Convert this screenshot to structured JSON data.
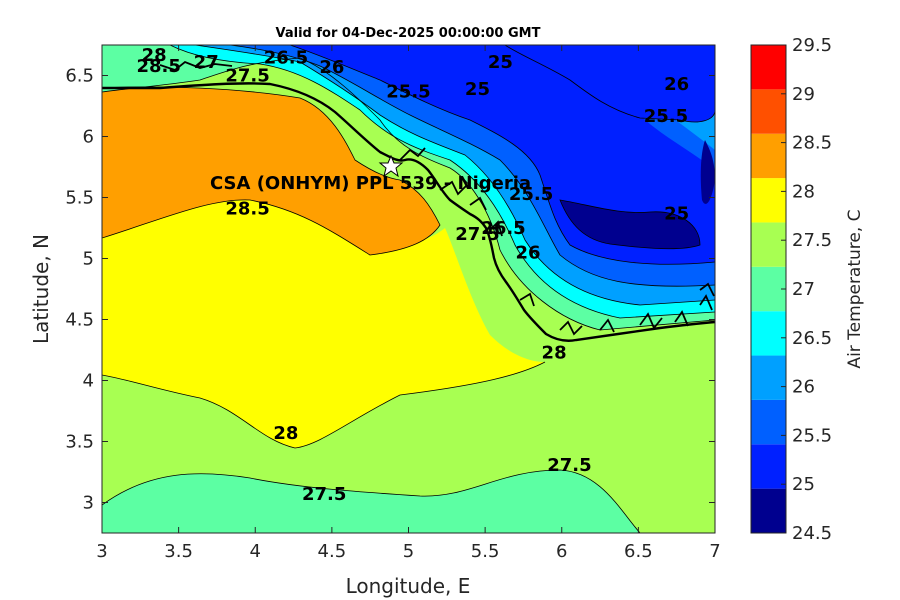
{
  "chart_data": {
    "type": "filled-contour",
    "title": "Valid for 04-Dec-2025 00:00:00 GMT",
    "xlabel": "Longitude, E",
    "ylabel": "Latitude, N",
    "xlim": [
      3,
      7
    ],
    "ylim": [
      2.75,
      6.75
    ],
    "xticks": [
      "3",
      "3.5",
      "4",
      "4.5",
      "5",
      "5.5",
      "6",
      "6.5",
      "7"
    ],
    "yticks": [
      "3",
      "3.5",
      "4",
      "4.5",
      "5",
      "5.5",
      "6",
      "6.5"
    ],
    "colorbar": {
      "label": "Air Temperature, C",
      "ticks": [
        "24.5",
        "25",
        "25.5",
        "26",
        "26.5",
        "27",
        "27.5",
        "28",
        "28.5",
        "29",
        "29.5"
      ],
      "colors": [
        "#00008f",
        "#0020ff",
        "#0060ff",
        "#00a0ff",
        "#00ffff",
        "#5cffa3",
        "#a8ff52",
        "#ffff00",
        "#ff9f00",
        "#ff5000",
        "#ff0000"
      ]
    },
    "site_marker": {
      "label": "CSA (ONHYM) PPL 539 - Nigeria",
      "lon": 4.88,
      "lat": 5.77
    },
    "contour_labels": [
      {
        "text": "28",
        "lon": 3.34,
        "lat": 6.62
      },
      {
        "text": "28.5",
        "lon": 3.37,
        "lat": 6.53
      },
      {
        "text": "27",
        "lon": 3.68,
        "lat": 6.56
      },
      {
        "text": "26.5",
        "lon": 4.2,
        "lat": 6.6
      },
      {
        "text": "26",
        "lon": 4.5,
        "lat": 6.52
      },
      {
        "text": "27.5",
        "lon": 3.95,
        "lat": 6.45
      },
      {
        "text": "25",
        "lon": 5.6,
        "lat": 6.56
      },
      {
        "text": "25.5",
        "lon": 5.0,
        "lat": 6.32
      },
      {
        "text": "25",
        "lon": 5.45,
        "lat": 6.34
      },
      {
        "text": "26",
        "lon": 6.75,
        "lat": 6.38
      },
      {
        "text": "25.5",
        "lon": 6.68,
        "lat": 6.12
      },
      {
        "text": "28.5",
        "lon": 3.95,
        "lat": 5.36
      },
      {
        "text": "25.5",
        "lon": 5.8,
        "lat": 5.48
      },
      {
        "text": "26.5",
        "lon": 5.62,
        "lat": 5.2
      },
      {
        "text": "26",
        "lon": 5.78,
        "lat": 5.0
      },
      {
        "text": "27.5",
        "lon": 5.45,
        "lat": 5.15
      },
      {
        "text": "25",
        "lon": 6.75,
        "lat": 5.32
      },
      {
        "text": "28",
        "lon": 5.95,
        "lat": 4.18
      },
      {
        "text": "28",
        "lon": 4.2,
        "lat": 3.52
      },
      {
        "text": "27.5",
        "lon": 4.45,
        "lat": 3.02
      },
      {
        "text": "27.5",
        "lon": 6.05,
        "lat": 3.26
      }
    ]
  }
}
